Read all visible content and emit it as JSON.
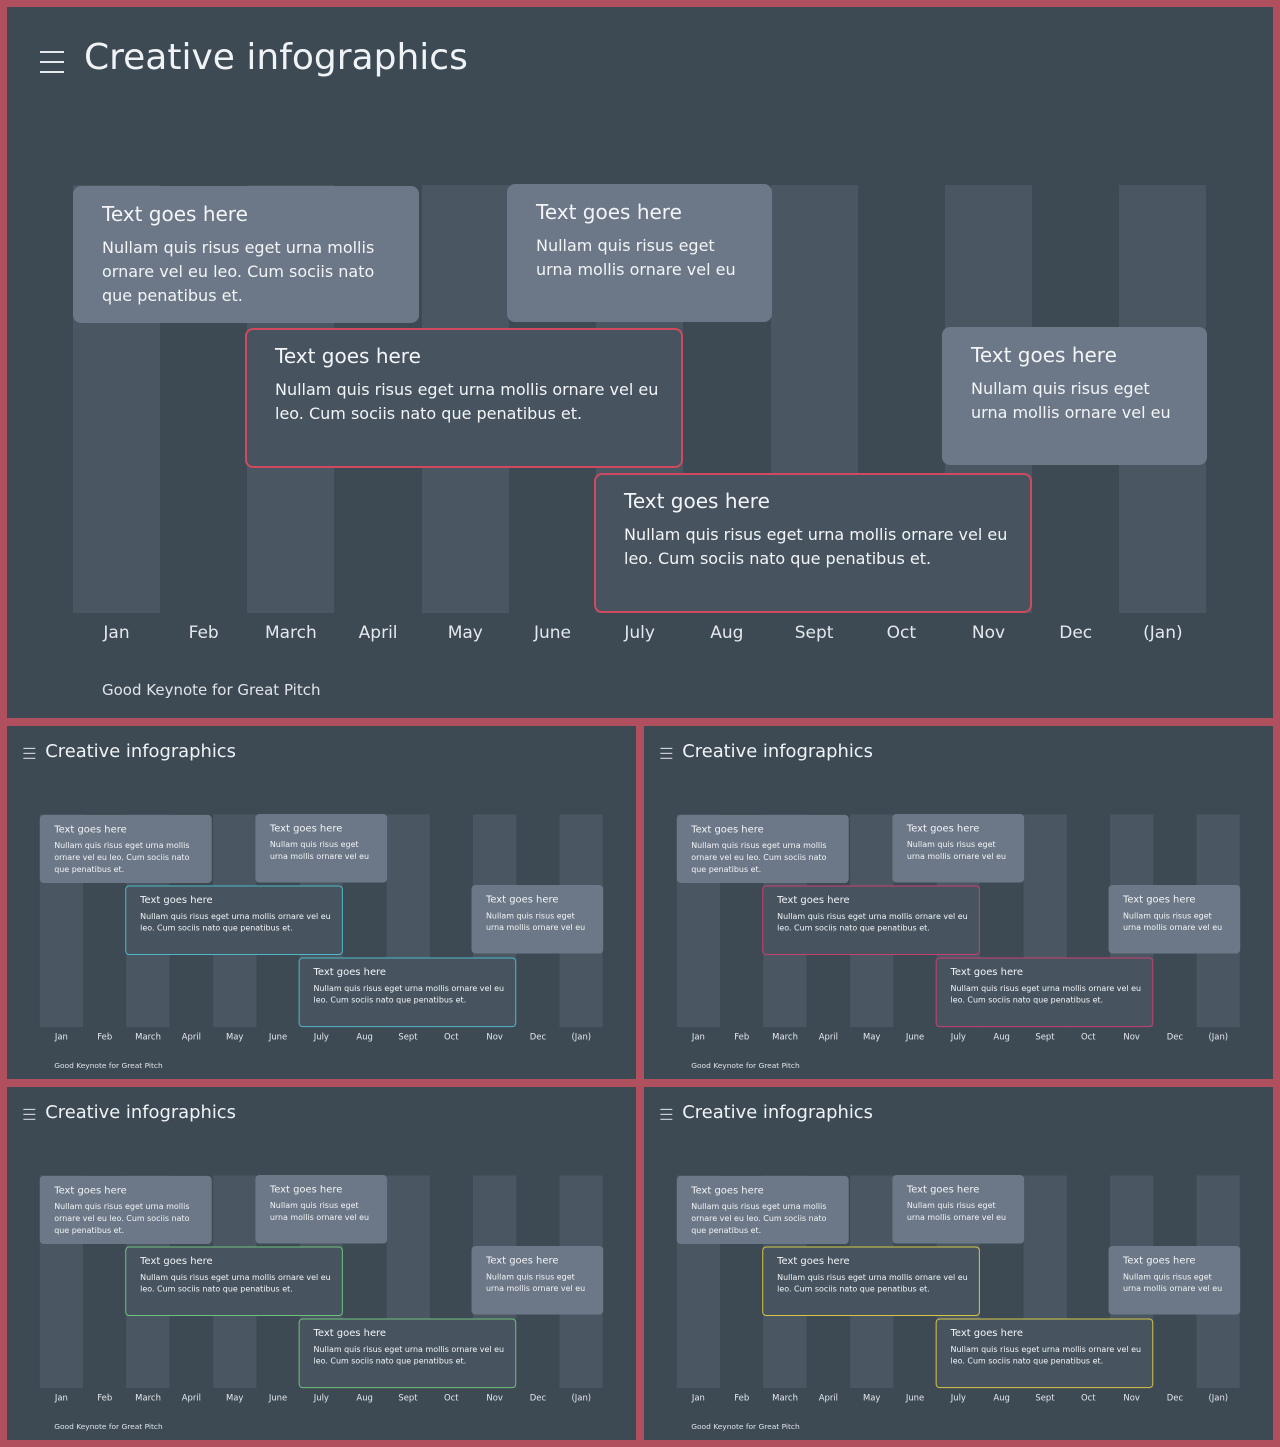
{
  "slides": [
    {
      "title": "Creative infographics",
      "accent": "#cf4a5e",
      "footer": "Good Keynote for Great Pitch",
      "months": [
        "Jan",
        "Feb",
        "March",
        "April",
        "May",
        "June",
        "July",
        "Aug",
        "Sept",
        "Oct",
        "Nov",
        "Dec",
        "(Jan)"
      ],
      "cards": [
        {
          "title": "Text goes here",
          "body": "Nullam quis risus eget urna mollis ornare vel eu leo. Cum sociis nato que penatibus et."
        },
        {
          "title": "Text goes here",
          "body": "Nullam quis risus eget urna mollis ornare vel eu"
        },
        {
          "title": "Text goes here",
          "body": "Nullam quis risus eget urna mollis ornare vel eu leo. Cum sociis nato que penatibus et."
        },
        {
          "title": "Text goes here",
          "body": "Nullam quis risus eget urna mollis ornare vel eu"
        },
        {
          "title": "Text goes here",
          "body": "Nullam quis risus eget urna mollis ornare vel eu leo. Cum sociis nato que penatibus et."
        }
      ]
    },
    {
      "title": "Creative infographics",
      "accent": "#4fb8c6",
      "footer": "Good Keynote for Great Pitch",
      "months": [
        "Jan",
        "Feb",
        "March",
        "April",
        "May",
        "June",
        "July",
        "Aug",
        "Sept",
        "Oct",
        "Nov",
        "Dec",
        "(Jan)"
      ],
      "cards": [
        {
          "title": "Text goes here",
          "body": "Nullam quis risus eget urna mollis ornare vel eu leo. Cum sociis nato que penatibus et."
        },
        {
          "title": "Text goes here",
          "body": "Nullam quis risus eget urna mollis ornare vel eu"
        },
        {
          "title": "Text goes here",
          "body": "Nullam quis risus eget urna mollis ornare vel eu leo. Cum sociis nato que penatibus et."
        },
        {
          "title": "Text goes here",
          "body": "Nullam quis risus eget urna mollis ornare vel eu"
        },
        {
          "title": "Text goes here",
          "body": "Nullam quis risus eget urna mollis ornare vel eu leo. Cum sociis nato que penatibus et."
        }
      ]
    },
    {
      "title": "Creative infographics",
      "accent": "#c9406f",
      "footer": "Good Keynote for Great Pitch",
      "months": [
        "Jan",
        "Feb",
        "March",
        "April",
        "May",
        "June",
        "July",
        "Aug",
        "Sept",
        "Oct",
        "Nov",
        "Dec",
        "(Jan)"
      ],
      "cards": [
        {
          "title": "Text goes here",
          "body": "Nullam quis risus eget urna mollis ornare vel eu leo. Cum sociis nato que penatibus et."
        },
        {
          "title": "Text goes here",
          "body": "Nullam quis risus eget urna mollis ornare vel eu"
        },
        {
          "title": "Text goes here",
          "body": "Nullam quis risus eget urna mollis ornare vel eu leo. Cum sociis nato que penatibus et."
        },
        {
          "title": "Text goes here",
          "body": "Nullam quis risus eget urna mollis ornare vel eu"
        },
        {
          "title": "Text goes here",
          "body": "Nullam quis risus eget urna mollis ornare vel eu leo. Cum sociis nato que penatibus et."
        }
      ]
    },
    {
      "title": "Creative infographics",
      "accent": "#6cc27a",
      "footer": "Good Keynote for Great Pitch",
      "months": [
        "Jan",
        "Feb",
        "March",
        "April",
        "May",
        "June",
        "July",
        "Aug",
        "Sept",
        "Oct",
        "Nov",
        "Dec",
        "(Jan)"
      ],
      "cards": [
        {
          "title": "Text goes here",
          "body": "Nullam quis risus eget urna mollis ornare vel eu leo. Cum sociis nato que penatibus et."
        },
        {
          "title": "Text goes here",
          "body": "Nullam quis risus eget urna mollis ornare vel eu"
        },
        {
          "title": "Text goes here",
          "body": "Nullam quis risus eget urna mollis ornare vel eu leo. Cum sociis nato que penatibus et."
        },
        {
          "title": "Text goes here",
          "body": "Nullam quis risus eget urna mollis ornare vel eu"
        },
        {
          "title": "Text goes here",
          "body": "Nullam quis risus eget urna mollis ornare vel eu leo. Cum sociis nato que penatibus et."
        }
      ]
    },
    {
      "title": "Creative infographics",
      "accent": "#d6c646",
      "footer": "Good Keynote for Great Pitch",
      "months": [
        "Jan",
        "Feb",
        "March",
        "April",
        "May",
        "June",
        "July",
        "Aug",
        "Sept",
        "Oct",
        "Nov",
        "Dec",
        "(Jan)"
      ],
      "cards": [
        {
          "title": "Text goes here",
          "body": "Nullam quis risus eget urna mollis ornare vel eu leo. Cum sociis nato que penatibus et."
        },
        {
          "title": "Text goes here",
          "body": "Nullam quis risus eget urna mollis ornare vel eu"
        },
        {
          "title": "Text goes here",
          "body": "Nullam quis risus eget urna mollis ornare vel eu leo. Cum sociis nato que penatibus et."
        },
        {
          "title": "Text goes here",
          "body": "Nullam quis risus eget urna mollis ornare vel eu"
        },
        {
          "title": "Text goes here",
          "body": "Nullam quis risus eget urna mollis ornare vel eu leo. Cum sociis nato que penatibus et."
        }
      ]
    }
  ]
}
